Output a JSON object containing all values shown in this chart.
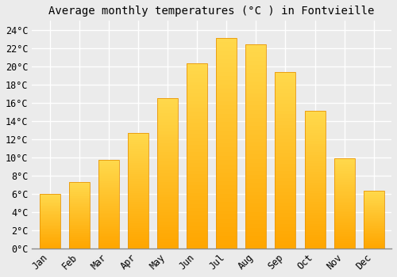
{
  "title": "Average monthly temperatures (°C ) in Fontvieille",
  "months": [
    "Jan",
    "Feb",
    "Mar",
    "Apr",
    "May",
    "Jun",
    "Jul",
    "Aug",
    "Sep",
    "Oct",
    "Nov",
    "Dec"
  ],
  "values": [
    6.0,
    7.3,
    9.7,
    12.7,
    16.5,
    20.3,
    23.1,
    22.4,
    19.4,
    15.1,
    9.9,
    6.3
  ],
  "bar_color_top": "#FFD966",
  "bar_color_bottom": "#FFA500",
  "bar_edge_color": "#E8960A",
  "ylim": [
    0,
    25
  ],
  "yticks": [
    0,
    2,
    4,
    6,
    8,
    10,
    12,
    14,
    16,
    18,
    20,
    22,
    24
  ],
  "background_color": "#EBEBEB",
  "grid_color": "#FFFFFF",
  "title_fontsize": 10,
  "tick_fontsize": 8.5
}
